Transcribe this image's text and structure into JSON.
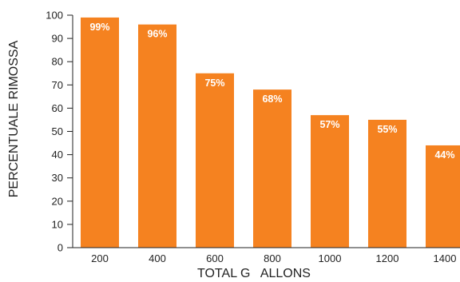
{
  "chart_data": {
    "type": "bar",
    "title": "",
    "xlabel": "TOTAL G   ALLONS",
    "ylabel": "PERCENTUALE RIMOSSA",
    "categories": [
      "200",
      "400",
      "600",
      "800",
      "1000",
      "1200",
      "1400"
    ],
    "values": [
      99,
      96,
      75,
      68,
      57,
      55,
      44
    ],
    "data_labels": [
      "99%",
      "96%",
      "75%",
      "68%",
      "57%",
      "55%",
      "44%"
    ],
    "ylim": [
      0,
      100
    ],
    "yticks": [
      0,
      10,
      20,
      30,
      40,
      50,
      60,
      70,
      80,
      90,
      100
    ],
    "ytick_labels": [
      "0",
      "10",
      "20",
      "30",
      "40",
      "50",
      "60",
      "70",
      "80",
      "90",
      "100"
    ],
    "grid": false,
    "legend": "none",
    "colors": {
      "bar": "#f58220",
      "axis": "#222222",
      "bar_label": "#ffffff"
    }
  }
}
